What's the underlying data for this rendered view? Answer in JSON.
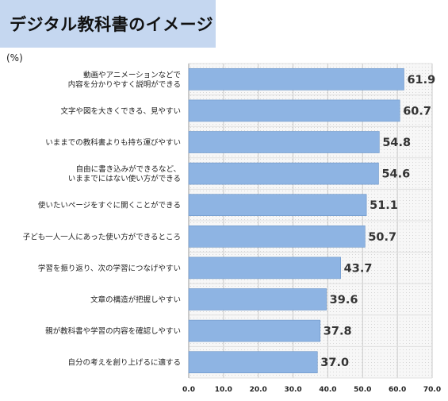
{
  "header": {
    "title": "デジタル教科書のイメージ",
    "unit": "(%)"
  },
  "chart_data": {
    "type": "bar",
    "orientation": "horizontal",
    "title": "デジタル教科書のイメージ",
    "unit": "(%)",
    "categories": [
      [
        "動画やアニメーションなどで",
        "内容を分かりやすく説明ができる"
      ],
      [
        "文字や図を大きくできる、見やすい"
      ],
      [
        "いままでの教科書よりも持ち運びやすい"
      ],
      [
        "自由に書き込みができるなど、",
        "いままでにはない使い方ができる"
      ],
      [
        "使いたいページをすぐに開くことができる"
      ],
      [
        "子ども一人一人にあった使い方ができるところ"
      ],
      [
        "学習を振り返り、次の学習につなげやすい"
      ],
      [
        "文章の構造が把握しやすい"
      ],
      [
        "親が教科書や学習の内容を確認しやすい"
      ],
      [
        "自分の考えを創り上げるに適する"
      ]
    ],
    "values": [
      61.9,
      60.7,
      54.8,
      54.6,
      51.1,
      50.7,
      43.7,
      39.6,
      37.8,
      37.0
    ],
    "value_labels": [
      "61.9",
      "60.7",
      "54.8",
      "54.6",
      "51.1",
      "50.7",
      "43.7",
      "39.6",
      "37.8",
      "37.0"
    ],
    "xlim": [
      0,
      70
    ],
    "ticks": [
      "0.0",
      "10.0",
      "20.0",
      "30.0",
      "40.0",
      "50.0",
      "60.0",
      "70.0"
    ],
    "grid": true,
    "bar_color": "#8eb4e3",
    "bar_border_color": "#6a94c8",
    "plot_background": "#f2f2f2"
  }
}
